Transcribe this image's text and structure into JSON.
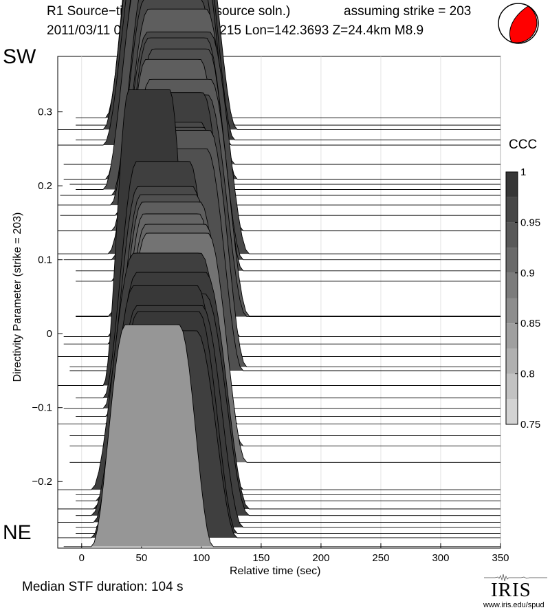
{
  "title_line1": "R1 Source−time functions (2 source soln.)",
  "title_strike": "assuming strike = 203",
  "subtitle": "2011/03/11 05:46:23  Lat=38.3215 Lon=142.3693  Z=24.4km  M8.9",
  "label_sw": "SW",
  "label_ne": "NE",
  "median": "Median STF duration: 104 s",
  "iris_text": "IRIS",
  "iris_url": "www.iris.edu/spud",
  "beachball": {
    "fill": "#ff0000",
    "outline": "#000000"
  },
  "chart_data": {
    "type": "area",
    "xlabel": "Relative time (sec)",
    "ylabel": "Directivity Parameter (strike = 203)",
    "xlim": [
      -20,
      350
    ],
    "ylim": [
      -0.29,
      0.375
    ],
    "x_ticks": [
      0,
      50,
      100,
      150,
      200,
      250,
      300,
      350
    ],
    "x_tick_labels": [
      "0",
      "50",
      "100",
      "150",
      "200",
      "250",
      "300",
      "350"
    ],
    "y_ticks": [
      0.3,
      0.2,
      0.1,
      0,
      -0.1,
      -0.2
    ],
    "y_tick_labels": [
      "0.3",
      "0.2",
      "0.1",
      "0",
      "−0.1",
      "−0.2"
    ],
    "grid": "vertical",
    "colorbar": {
      "title": "CCC",
      "range": [
        0.75,
        1
      ],
      "ticks": [
        1,
        0.95,
        0.9,
        0.85,
        0.8,
        0.75
      ],
      "tick_labels": [
        "1",
        "0.95",
        "0.9",
        "0.85",
        "0.8",
        "0.75"
      ]
    },
    "traces": [
      {
        "y": 0.292,
        "start": -5,
        "onset": 20,
        "end": 125,
        "ccc": 0.985,
        "peak": 0.34
      },
      {
        "y": 0.282,
        "start": -5,
        "onset": 25,
        "end": 128,
        "ccc": 0.975,
        "peak": 0.3
      },
      {
        "y": 0.276,
        "start": -20,
        "onset": 18,
        "end": 130,
        "ccc": 0.97,
        "peak": 0.32
      },
      {
        "y": 0.262,
        "start": -5,
        "onset": 24,
        "end": 128,
        "ccc": 0.98,
        "peak": 0.3
      },
      {
        "y": 0.255,
        "start": -20,
        "onset": 18,
        "end": 125,
        "ccc": 0.975,
        "peak": 0.28
      },
      {
        "y": 0.229,
        "start": -15,
        "onset": 28,
        "end": 128,
        "ccc": 0.93,
        "peak": 0.26
      },
      {
        "y": 0.209,
        "start": -15,
        "onset": 20,
        "end": 130,
        "ccc": 0.965,
        "peak": 0.32
      },
      {
        "y": 0.202,
        "start": -10,
        "onset": 22,
        "end": 125,
        "ccc": 0.96,
        "peak": 0.31
      },
      {
        "y": 0.195,
        "start": -5,
        "onset": 18,
        "end": 128,
        "ccc": 0.95,
        "peak": 0.3
      },
      {
        "y": 0.187,
        "start": -18,
        "onset": 25,
        "end": 128,
        "ccc": 0.97,
        "peak": 0.3
      },
      {
        "y": 0.174,
        "start": -20,
        "onset": 24,
        "end": 128,
        "ccc": 0.96,
        "peak": 0.28
      },
      {
        "y": 0.16,
        "start": -18,
        "onset": 28,
        "end": 128,
        "ccc": 0.94,
        "peak": 0.27
      },
      {
        "y": 0.139,
        "start": -20,
        "onset": 25,
        "end": 135,
        "ccc": 0.93,
        "peak": 0.3
      },
      {
        "y": 0.108,
        "start": -20,
        "onset": 22,
        "end": 140,
        "ccc": 0.96,
        "peak": 0.3
      },
      {
        "y": 0.1,
        "start": -15,
        "onset": 25,
        "end": 135,
        "ccc": 0.955,
        "peak": 0.3
      },
      {
        "y": 0.085,
        "start": -5,
        "onset": 30,
        "end": 135,
        "ccc": 0.95,
        "peak": 0.3
      },
      {
        "y": 0.071,
        "start": -5,
        "onset": 25,
        "end": 128,
        "ccc": 0.93,
        "peak": 0.3
      },
      {
        "y": 0.024,
        "start": -5,
        "onset": 25,
        "end": 140,
        "ccc": 0.935,
        "peak": 0.32
      },
      {
        "y": 0.023,
        "start": -5,
        "onset": 22,
        "end": 138,
        "ccc": 0.96,
        "peak": 0.3
      },
      {
        "y": -0.004,
        "start": -15,
        "onset": 22,
        "end": 132,
        "ccc": 0.975,
        "peak": 0.33
      },
      {
        "y": -0.014,
        "start": -15,
        "onset": 22,
        "end": 130,
        "ccc": 0.96,
        "peak": 0.3
      },
      {
        "y": -0.031,
        "start": -20,
        "onset": 25,
        "end": 132,
        "ccc": 0.955,
        "peak": 0.31
      },
      {
        "y": -0.045,
        "start": -10,
        "onset": 28,
        "end": 138,
        "ccc": 0.94,
        "peak": 0.32
      },
      {
        "y": -0.05,
        "start": -10,
        "onset": 26,
        "end": 135,
        "ccc": 0.95,
        "peak": 0.3
      },
      {
        "y": -0.07,
        "start": -20,
        "onset": 18,
        "end": 95,
        "ccc": 0.985,
        "peak": 0.4
      },
      {
        "y": -0.087,
        "start": -5,
        "onset": 18,
        "end": 118,
        "ccc": 0.975,
        "peak": 0.32
      },
      {
        "y": -0.101,
        "start": -15,
        "onset": 18,
        "end": 122,
        "ccc": 0.96,
        "peak": 0.3
      },
      {
        "y": -0.112,
        "start": -5,
        "onset": 20,
        "end": 125,
        "ccc": 0.95,
        "peak": 0.3
      },
      {
        "y": -0.122,
        "start": -20,
        "onset": 20,
        "end": 130,
        "ccc": 0.93,
        "peak": 0.3
      },
      {
        "y": -0.138,
        "start": -10,
        "onset": 22,
        "end": 128,
        "ccc": 0.92,
        "peak": 0.3
      },
      {
        "y": -0.152,
        "start": -10,
        "onset": 22,
        "end": 135,
        "ccc": 0.92,
        "peak": 0.3
      },
      {
        "y": -0.174,
        "start": -10,
        "onset": 22,
        "end": 138,
        "ccc": 0.9,
        "peak": 0.31
      },
      {
        "y": -0.211,
        "start": -20,
        "onset": 8,
        "end": 135,
        "ccc": 0.975,
        "peak": 0.32
      },
      {
        "y": -0.218,
        "start": -5,
        "onset": 15,
        "end": 130,
        "ccc": 0.965,
        "peak": 0.3
      },
      {
        "y": -0.226,
        "start": -5,
        "onset": 12,
        "end": 135,
        "ccc": 0.96,
        "peak": 0.3
      },
      {
        "y": -0.237,
        "start": -20,
        "onset": 10,
        "end": 140,
        "ccc": 0.98,
        "peak": 0.32
      },
      {
        "y": -0.246,
        "start": -5,
        "onset": 8,
        "end": 140,
        "ccc": 0.975,
        "peak": 0.3
      },
      {
        "y": -0.255,
        "start": -20,
        "onset": 10,
        "end": 130,
        "ccc": 0.985,
        "peak": 0.32
      },
      {
        "y": -0.262,
        "start": -5,
        "onset": 12,
        "end": 135,
        "ccc": 0.98,
        "peak": 0.3
      },
      {
        "y": -0.27,
        "start": -5,
        "onset": 15,
        "end": 130,
        "ccc": 0.985,
        "peak": 0.3
      },
      {
        "y": -0.276,
        "start": -20,
        "onset": 8,
        "end": 130,
        "ccc": 0.975,
        "peak": 0.28
      },
      {
        "y": -0.288,
        "start": -15,
        "onset": 8,
        "end": 110,
        "ccc": 0.85,
        "peak": 0.3
      }
    ]
  }
}
